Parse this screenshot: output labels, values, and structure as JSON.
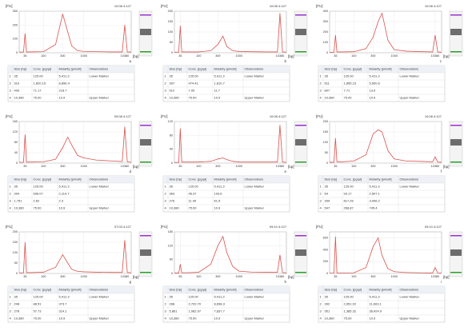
{
  "chart_data": [
    {
      "type": "line",
      "title": "10:08 4:127",
      "label": "a",
      "ylabel": "[FU]",
      "xlabel": "[bp]",
      "xscale": "log",
      "color": "#d9534f",
      "grid": true,
      "x": [
        25,
        32,
        35,
        38,
        50,
        100,
        200,
        300,
        400,
        500,
        700,
        1000,
        2000,
        5000,
        9000,
        10380,
        12000,
        15000
      ],
      "values": [
        5,
        5,
        140,
        6,
        6,
        8,
        60,
        280,
        150,
        50,
        15,
        10,
        8,
        6,
        6,
        200,
        6,
        5
      ],
      "xlim": [
        25,
        15000
      ],
      "xticks": [
        35,
        100,
        300,
        1000,
        10380
      ],
      "ylim": [
        0,
        300
      ],
      "yticks": [
        0,
        100,
        200,
        300
      ]
    },
    {
      "type": "line",
      "title": "10:08 4:127",
      "label": "b",
      "ylabel": "[FU]",
      "xlabel": "[bp]",
      "xscale": "log",
      "color": "#d9534f",
      "grid": true,
      "x": [
        25,
        32,
        35,
        38,
        50,
        100,
        200,
        300,
        400,
        500,
        700,
        1000,
        2000,
        5000,
        9000,
        10380,
        12000,
        15000
      ],
      "values": [
        3,
        3,
        130,
        4,
        4,
        4,
        10,
        40,
        80,
        30,
        10,
        6,
        5,
        4,
        4,
        190,
        4,
        3
      ],
      "xlim": [
        25,
        15000
      ],
      "xticks": [
        35,
        100,
        300,
        1000,
        10380
      ],
      "ylim": [
        0,
        200
      ],
      "yticks": [
        0,
        50,
        100,
        150,
        200
      ]
    },
    {
      "type": "line",
      "title": "10:08 4:127",
      "label": "c",
      "ylabel": "[FU]",
      "xlabel": "[bp]",
      "xscale": "log",
      "color": "#d9534f",
      "grid": true,
      "x": [
        25,
        32,
        35,
        38,
        50,
        100,
        200,
        300,
        400,
        500,
        700,
        1000,
        2000,
        5000,
        9000,
        10380,
        12000,
        15000
      ],
      "values": [
        5,
        5,
        170,
        8,
        8,
        10,
        40,
        150,
        300,
        380,
        120,
        30,
        15,
        10,
        8,
        170,
        8,
        5
      ],
      "xlim": [
        25,
        15000
      ],
      "xticks": [
        35,
        100,
        300,
        1000,
        10380
      ],
      "ylim": [
        0,
        400
      ],
      "yticks": [
        0,
        100,
        200,
        300,
        400
      ]
    },
    {
      "type": "line",
      "title": "09:08 4:127",
      "label": "d",
      "ylabel": "[FU]",
      "xlabel": "[bp]",
      "xscale": "log",
      "color": "#d9534f",
      "grid": true,
      "x": [
        25,
        32,
        35,
        38,
        50,
        100,
        200,
        300,
        400,
        500,
        700,
        1000,
        2000,
        5000,
        9000,
        10380,
        12000,
        15000
      ],
      "values": [
        3,
        3,
        110,
        4,
        4,
        5,
        15,
        60,
        100,
        70,
        30,
        20,
        12,
        8,
        6,
        140,
        5,
        3
      ],
      "xlim": [
        25,
        15000
      ],
      "xticks": [
        35,
        100,
        300,
        1000,
        10380
      ],
      "ylim": [
        0,
        160
      ],
      "yticks": [
        0,
        40,
        80,
        120,
        160
      ]
    },
    {
      "type": "line",
      "title": "10:08 4:127",
      "label": "e",
      "ylabel": "[FU]",
      "xlabel": "[bp]",
      "xscale": "log",
      "color": "#d9534f",
      "grid": true,
      "x": [
        25,
        32,
        35,
        38,
        50,
        100,
        200,
        300,
        400,
        500,
        700,
        1000,
        2000,
        5000,
        9000,
        10380,
        12000,
        15000
      ],
      "values": [
        2,
        2,
        100,
        3,
        3,
        3,
        5,
        12,
        15,
        10,
        5,
        3,
        3,
        3,
        3,
        110,
        3,
        2
      ],
      "xlim": [
        25,
        15000
      ],
      "xticks": [
        35,
        100,
        300,
        1000,
        10380
      ],
      "ylim": [
        0,
        120
      ],
      "yticks": [
        0,
        40,
        80,
        120
      ]
    },
    {
      "type": "line",
      "title": "10:08 4:127",
      "label": "f",
      "ylabel": "[FU]",
      "xlabel": "[bp]",
      "xscale": "log",
      "color": "#d9534f",
      "grid": true,
      "x": [
        25,
        32,
        35,
        38,
        50,
        100,
        200,
        300,
        400,
        500,
        700,
        1000,
        2000,
        5000,
        9000,
        10380,
        12000,
        15000
      ],
      "values": [
        4,
        4,
        120,
        6,
        6,
        10,
        40,
        140,
        160,
        150,
        60,
        20,
        10,
        8,
        6,
        30,
        5,
        4
      ],
      "xlim": [
        25,
        15000
      ],
      "xticks": [
        35,
        100,
        300,
        1000,
        10380
      ],
      "ylim": [
        0,
        200
      ],
      "yticks": [
        0,
        50,
        100,
        150,
        200
      ]
    },
    {
      "type": "line",
      "title": "07:03 4:127",
      "label": "g",
      "ylabel": "[FU]",
      "xlabel": "[bp]",
      "xscale": "log",
      "color": "#d9534f",
      "grid": true,
      "x": [
        25,
        32,
        35,
        38,
        50,
        100,
        200,
        300,
        400,
        500,
        700,
        1000,
        2000,
        5000,
        9000,
        10380,
        12000,
        15000
      ],
      "values": [
        3,
        3,
        150,
        4,
        4,
        6,
        30,
        90,
        50,
        20,
        10,
        8,
        6,
        5,
        5,
        160,
        5,
        3
      ],
      "xlim": [
        25,
        15000
      ],
      "xticks": [
        35,
        100,
        300,
        1000,
        10380
      ],
      "ylim": [
        0,
        200
      ],
      "yticks": [
        0,
        50,
        100,
        150,
        200
      ]
    },
    {
      "type": "line",
      "title": "09:10 4:127",
      "label": "h",
      "ylabel": "[FU]",
      "xlabel": "[bp]",
      "xscale": "log",
      "color": "#d9534f",
      "grid": true,
      "x": [
        25,
        32,
        35,
        38,
        50,
        100,
        200,
        300,
        400,
        500,
        700,
        1000,
        2000,
        5000,
        9000,
        10380,
        12000,
        15000
      ],
      "values": [
        2,
        2,
        40,
        3,
        3,
        5,
        40,
        120,
        160,
        90,
        30,
        10,
        6,
        5,
        5,
        80,
        4,
        2
      ],
      "xlim": [
        25,
        15000
      ],
      "xticks": [
        35,
        100,
        300,
        1000,
        10380
      ],
      "ylim": [
        0,
        180
      ],
      "yticks": [
        0,
        60,
        120,
        180
      ]
    },
    {
      "type": "line",
      "title": "09:10 4:127",
      "label": "i",
      "ylabel": "[FU]",
      "xlabel": "[bp]",
      "xscale": "log",
      "color": "#d9534f",
      "grid": true,
      "x": [
        25,
        32,
        35,
        38,
        50,
        100,
        200,
        300,
        400,
        500,
        700,
        1000,
        2000,
        5000,
        9000,
        10380,
        12000,
        15000
      ],
      "values": [
        5,
        5,
        620,
        8,
        8,
        10,
        100,
        450,
        600,
        300,
        80,
        30,
        15,
        10,
        8,
        100,
        8,
        5
      ],
      "xlim": [
        25,
        15000
      ],
      "xticks": [
        35,
        100,
        300,
        1000,
        10380
      ],
      "ylim": [
        0,
        700
      ],
      "yticks": [
        0,
        200,
        400,
        600
      ]
    }
  ],
  "tables": [
    {
      "header": [
        "Size [bp]",
        "Conc. [pg/µl]",
        "Molarity [pmol/l]",
        "Observations"
      ],
      "rows": [
        [
          "1",
          "35",
          "125.00",
          "5,411.3",
          "Lower Marker"
        ],
        [
          "2",
          "310",
          "1,820.15",
          "8,896.4"
        ],
        [
          "3",
          "493",
          "71.17",
          "218.7"
        ],
        [
          "4",
          "10,380",
          "75.00",
          "10.9",
          "Upper Marker"
        ]
      ]
    },
    {
      "header": [
        "Size [bp]",
        "Conc. [pg/µl]",
        "Molarity [pmol/l]",
        "Observations"
      ],
      "rows": [
        [
          "1",
          "35",
          "125.00",
          "5,411.3",
          "Lower Marker"
        ],
        [
          "2",
          "397",
          "474.41",
          "1,810.7"
        ],
        [
          "3",
          "912",
          "7.05",
          "11.7"
        ],
        [
          "4",
          "10,380",
          "75.00",
          "10.9",
          "Upper Marker"
        ]
      ]
    },
    {
      "header": [
        "Size [bp]",
        "Conc. [pg/µl]",
        "Molarity [pmol/l]",
        "Observations"
      ],
      "rows": [
        [
          "1",
          "35",
          "125.00",
          "5,411.3",
          "Lower Marker"
        ],
        [
          "2",
          "511",
          "1,855.23",
          "5,500.6"
        ],
        [
          "3",
          "897",
          "7.71",
          "13.0"
        ],
        [
          "4",
          "10,380",
          "75.00",
          "10.9",
          "Upper Marker"
        ]
      ]
    },
    {
      "header": [
        "Size [bp]",
        "Conc. [pg/µl]",
        "Molarity [pmol/l]",
        "Observations"
      ],
      "rows": [
        [
          "1",
          "35",
          "125.00",
          "5,411.3",
          "Lower Marker"
        ],
        [
          "2",
          "394",
          "696.07",
          "2,114.7"
        ],
        [
          "3",
          "1,751",
          "2.62",
          "2.3"
        ],
        [
          "4",
          "10,380",
          "75.00",
          "10.9",
          "Upper Marker"
        ]
      ]
    },
    {
      "header": [
        "Size [bp]",
        "Conc. [pg/µl]",
        "Molarity [pmol/l]",
        "Observations"
      ],
      "rows": [
        [
          "1",
          "35",
          "125.00",
          "5,411.3",
          "Lower Marker"
        ],
        [
          "2",
          "363",
          "46.37",
          "193.6"
        ],
        [
          "3",
          "276",
          "11.49",
          "61.5"
        ],
        [
          "4",
          "10,380",
          "75.00",
          "10.9",
          "Upper Marker"
        ]
      ]
    },
    {
      "header": [
        "Size [bp]",
        "Conc. [pg/µl]",
        "Molarity [pmol/l]",
        "Observations"
      ],
      "rows": [
        [
          "1",
          "35",
          "125.00",
          "5,411.3",
          "Lower Marker"
        ],
        [
          "2",
          "54",
          "93.17",
          "2,507.1"
        ],
        [
          "3",
          "399",
          "817.26",
          "3,096.2"
        ],
        [
          "4",
          "547",
          "268.87",
          "745.4"
        ]
      ]
    },
    {
      "header": [
        "Size [bp]",
        "Conc. [pg/µl]",
        "Molarity [pmol/l]",
        "Observations"
      ],
      "rows": [
        [
          "1",
          "35",
          "125.00",
          "5,411.3",
          "Lower Marker"
        ],
        [
          "2",
          "248",
          "88.51",
          "373.7"
        ],
        [
          "3",
          "278",
          "57.73",
          "314.1"
        ],
        [
          "4",
          "10,380",
          "75.00",
          "10.9",
          "Upper Marker"
        ]
      ]
    },
    {
      "header": [
        "Size [bp]",
        "Conc. [pg/µl]",
        "Molarity [pmol/l]",
        "Observations"
      ],
      "rows": [
        [
          "1",
          "35",
          "125.00",
          "5,411.3",
          "Lower Marker"
        ],
        [
          "2",
          "398",
          "2,720.70",
          "8,698.3"
        ],
        [
          "3",
          "5,861",
          "1,082.97",
          "7,837.7"
        ],
        [
          "4",
          "10,380",
          "75.00",
          "10.9",
          "Upper Marker"
        ]
      ]
    },
    {
      "header": [
        "Size [bp]",
        "Conc. [pg/µl]",
        "Molarity [pmol/l]",
        "Observations"
      ],
      "rows": [
        [
          "1",
          "35",
          "125.00",
          "5,411.3",
          "Lower Marker"
        ],
        [
          "2",
          "392",
          "2,951.02",
          "11,603.1"
        ],
        [
          "3",
          "951",
          "1,385.32",
          "36,424.9"
        ],
        [
          "4",
          "10,380",
          "75.00",
          "10.9",
          "Upper Marker"
        ]
      ]
    }
  ]
}
